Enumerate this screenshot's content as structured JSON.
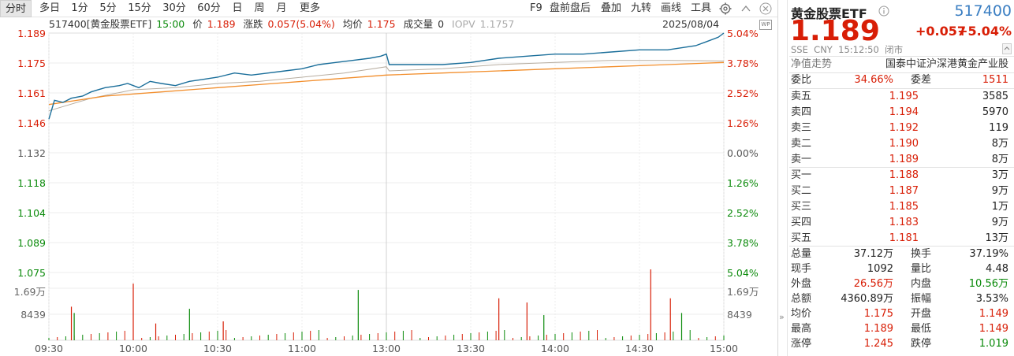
{
  "toolbar": {
    "periods": [
      "分时",
      "多日",
      "1分",
      "5分",
      "15分",
      "30分",
      "60分",
      "日",
      "周",
      "月",
      "更多"
    ],
    "active_period": "分时",
    "tools": [
      "F9",
      "盘前盘后",
      "叠加",
      "九转",
      "画线",
      "工具"
    ]
  },
  "info": {
    "code_name": "517400[黄金股票ETF]",
    "time": "15:00",
    "price_label": "价",
    "price": "1.189",
    "change_label": "涨跌",
    "change": "0.057(5.04%)",
    "avg_label": "均价",
    "avg": "1.175",
    "volume_label": "成交量",
    "volume": "0",
    "iopv_label": "IOPV",
    "iopv": "1.1757",
    "date": "2025/08/04",
    "wp_icon": "WP"
  },
  "chart_data": {
    "type": "line",
    "prev_close": 1.132,
    "ylim": [
      1.075,
      1.189
    ],
    "y_ticks": [
      {
        "price": "1.189",
        "pct": "5.04%",
        "dir": "up"
      },
      {
        "price": "1.175",
        "pct": "3.78%",
        "dir": "up"
      },
      {
        "price": "1.161",
        "pct": "2.52%",
        "dir": "up"
      },
      {
        "price": "1.146",
        "pct": "1.26%",
        "dir": "up"
      },
      {
        "price": "1.132",
        "pct": "0.00%",
        "dir": "flat"
      },
      {
        "price": "1.118",
        "pct": "1.26%",
        "dir": "down"
      },
      {
        "price": "1.104",
        "pct": "2.52%",
        "dir": "down"
      },
      {
        "price": "1.089",
        "pct": "3.78%",
        "dir": "down"
      },
      {
        "price": "1.075",
        "pct": "5.04%",
        "dir": "down"
      }
    ],
    "vol_ticks": [
      "1.69万",
      "8439"
    ],
    "x_ticks": [
      "09:30",
      "10:00",
      "10:30",
      "11:00",
      "13:00",
      "13:30",
      "14:00",
      "14:30",
      "15:00"
    ],
    "price_series": {
      "name": "价",
      "color": "#1a6e9a",
      "points": [
        [
          0,
          1.148
        ],
        [
          2,
          1.157
        ],
        [
          5,
          1.156
        ],
        [
          8,
          1.158
        ],
        [
          12,
          1.159
        ],
        [
          15,
          1.161
        ],
        [
          20,
          1.163
        ],
        [
          25,
          1.164
        ],
        [
          28,
          1.165
        ],
        [
          32,
          1.163
        ],
        [
          36,
          1.166
        ],
        [
          40,
          1.165
        ],
        [
          45,
          1.164
        ],
        [
          50,
          1.166
        ],
        [
          55,
          1.167
        ],
        [
          60,
          1.168
        ],
        [
          66,
          1.17
        ],
        [
          72,
          1.169
        ],
        [
          78,
          1.17
        ],
        [
          84,
          1.171
        ],
        [
          90,
          1.172
        ],
        [
          96,
          1.174
        ],
        [
          102,
          1.175
        ],
        [
          108,
          1.176
        ],
        [
          114,
          1.177
        ],
        [
          118,
          1.178
        ],
        [
          120,
          1.179
        ],
        [
          121,
          1.174
        ],
        [
          130,
          1.174
        ],
        [
          140,
          1.174
        ],
        [
          150,
          1.175
        ],
        [
          160,
          1.177
        ],
        [
          170,
          1.178
        ],
        [
          180,
          1.179
        ],
        [
          190,
          1.179
        ],
        [
          200,
          1.18
        ],
        [
          210,
          1.181
        ],
        [
          220,
          1.181
        ],
        [
          230,
          1.183
        ],
        [
          234,
          1.185
        ],
        [
          238,
          1.187
        ],
        [
          240,
          1.189
        ]
      ]
    },
    "avg_series": {
      "name": "均价",
      "color": "#f28e2c",
      "points": [
        [
          0,
          1.155
        ],
        [
          20,
          1.159
        ],
        [
          40,
          1.161
        ],
        [
          60,
          1.163
        ],
        [
          80,
          1.165
        ],
        [
          100,
          1.167
        ],
        [
          120,
          1.169
        ],
        [
          140,
          1.17
        ],
        [
          160,
          1.171
        ],
        [
          180,
          1.172
        ],
        [
          200,
          1.173
        ],
        [
          220,
          1.174
        ],
        [
          240,
          1.175
        ]
      ]
    },
    "iopv_series": {
      "name": "IOPV",
      "color": "#b7ada0",
      "points": [
        [
          0,
          1.152
        ],
        [
          15,
          1.158
        ],
        [
          30,
          1.162
        ],
        [
          45,
          1.163
        ],
        [
          60,
          1.165
        ],
        [
          75,
          1.166
        ],
        [
          90,
          1.168
        ],
        [
          105,
          1.17
        ],
        [
          120,
          1.173
        ],
        [
          121,
          1.171
        ],
        [
          140,
          1.172
        ],
        [
          160,
          1.174
        ],
        [
          180,
          1.175
        ],
        [
          200,
          1.176
        ],
        [
          220,
          1.176
        ],
        [
          240,
          1.1757
        ]
      ]
    },
    "volume_max": 16900,
    "volume": {
      "up_color": "#d81e06",
      "down_color": "#0a8a0a",
      "bars": [
        [
          8,
          8000,
          "up"
        ],
        [
          9,
          6500,
          "down"
        ],
        [
          30,
          13500,
          "up"
        ],
        [
          38,
          4000,
          "up"
        ],
        [
          50,
          7500,
          "down"
        ],
        [
          62,
          4500,
          "up"
        ],
        [
          110,
          12000,
          "down"
        ],
        [
          160,
          10000,
          "up"
        ],
        [
          170,
          9000,
          "up"
        ],
        [
          176,
          6000,
          "down"
        ],
        [
          214,
          16900,
          "up"
        ],
        [
          221,
          10000,
          "up"
        ],
        [
          225,
          6500,
          "down"
        ]
      ]
    }
  },
  "quote": {
    "name": "黄金股票ETF",
    "code": "517400",
    "price": "1.189",
    "change": "+0.057",
    "change_pct": "+5.04%",
    "meta": "SSE  CNY  15:12:50  闭市",
    "trend_label": "净值走势",
    "index_name": "国泰中证沪深港黄金产业股",
    "weibi_label": "委比",
    "weibi": "34.66%",
    "weicha_label": "委差",
    "weicha": "1511",
    "asks": [
      {
        "label": "卖五",
        "price": "1.195",
        "vol": "3585"
      },
      {
        "label": "卖四",
        "price": "1.194",
        "vol": "5970"
      },
      {
        "label": "卖三",
        "price": "1.192",
        "vol": "119"
      },
      {
        "label": "卖二",
        "price": "1.190",
        "vol": "8万"
      },
      {
        "label": "卖一",
        "price": "1.189",
        "vol": "8万"
      }
    ],
    "bids": [
      {
        "label": "买一",
        "price": "1.188",
        "vol": "3万"
      },
      {
        "label": "买二",
        "price": "1.187",
        "vol": "9万"
      },
      {
        "label": "买三",
        "price": "1.185",
        "vol": "1万"
      },
      {
        "label": "买四",
        "price": "1.183",
        "vol": "9万"
      },
      {
        "label": "买五",
        "price": "1.181",
        "vol": "13万"
      }
    ],
    "stats": [
      {
        "l1": "总量",
        "v1": "37.12万",
        "c1": "dark",
        "l2": "换手",
        "v2": "37.19%",
        "c2": "dark"
      },
      {
        "l1": "现手",
        "v1": "1092",
        "c1": "dark",
        "l2": "量比",
        "v2": "4.48",
        "c2": "dark"
      },
      {
        "l1": "外盘",
        "v1": "26.56万",
        "c1": "red",
        "l2": "内盘",
        "v2": "10.56万",
        "c2": "green"
      },
      {
        "l1": "总额",
        "v1": "4360.89万",
        "c1": "dark",
        "l2": "振幅",
        "v2": "3.53%",
        "c2": "dark"
      },
      {
        "l1": "均价",
        "v1": "1.175",
        "c1": "red",
        "l2": "开盘",
        "v2": "1.149",
        "c2": "red"
      },
      {
        "l1": "最高",
        "v1": "1.189",
        "c1": "red",
        "l2": "最低",
        "v2": "1.149",
        "c2": "red"
      },
      {
        "l1": "涨停",
        "v1": "1.245",
        "c1": "red",
        "l2": "跌停",
        "v2": "1.019",
        "c2": "green"
      }
    ],
    "expand_icon": "»"
  }
}
